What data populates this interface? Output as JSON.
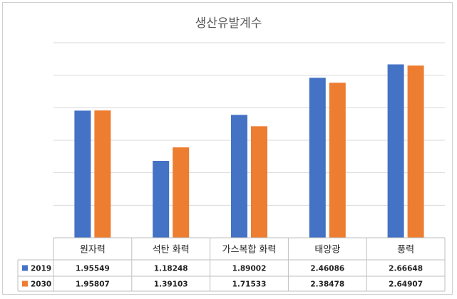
{
  "chart_data": {
    "type": "bar",
    "title": "생산유발계수",
    "categories": [
      "원자력",
      "석탄 화력",
      "가스복합 화력",
      "태양광",
      "풍력"
    ],
    "series": [
      {
        "name": "2019",
        "color": "#4472C4",
        "values": [
          1.95549,
          1.18248,
          1.89002,
          2.46086,
          2.66648
        ],
        "labels": [
          "1.95549",
          "1.18248",
          "1.89002",
          "2.46086",
          "2.66648"
        ]
      },
      {
        "name": "2030",
        "color": "#ED7D31",
        "values": [
          1.95807,
          1.39103,
          1.71533,
          2.38478,
          2.64907
        ],
        "labels": [
          "1.95807",
          "1.39103",
          "1.71533",
          "2.38478",
          "2.64907"
        ]
      }
    ],
    "ylim": [
      0,
      3
    ],
    "grid": true,
    "legend": "data-table",
    "xlabel": "",
    "ylabel": ""
  }
}
